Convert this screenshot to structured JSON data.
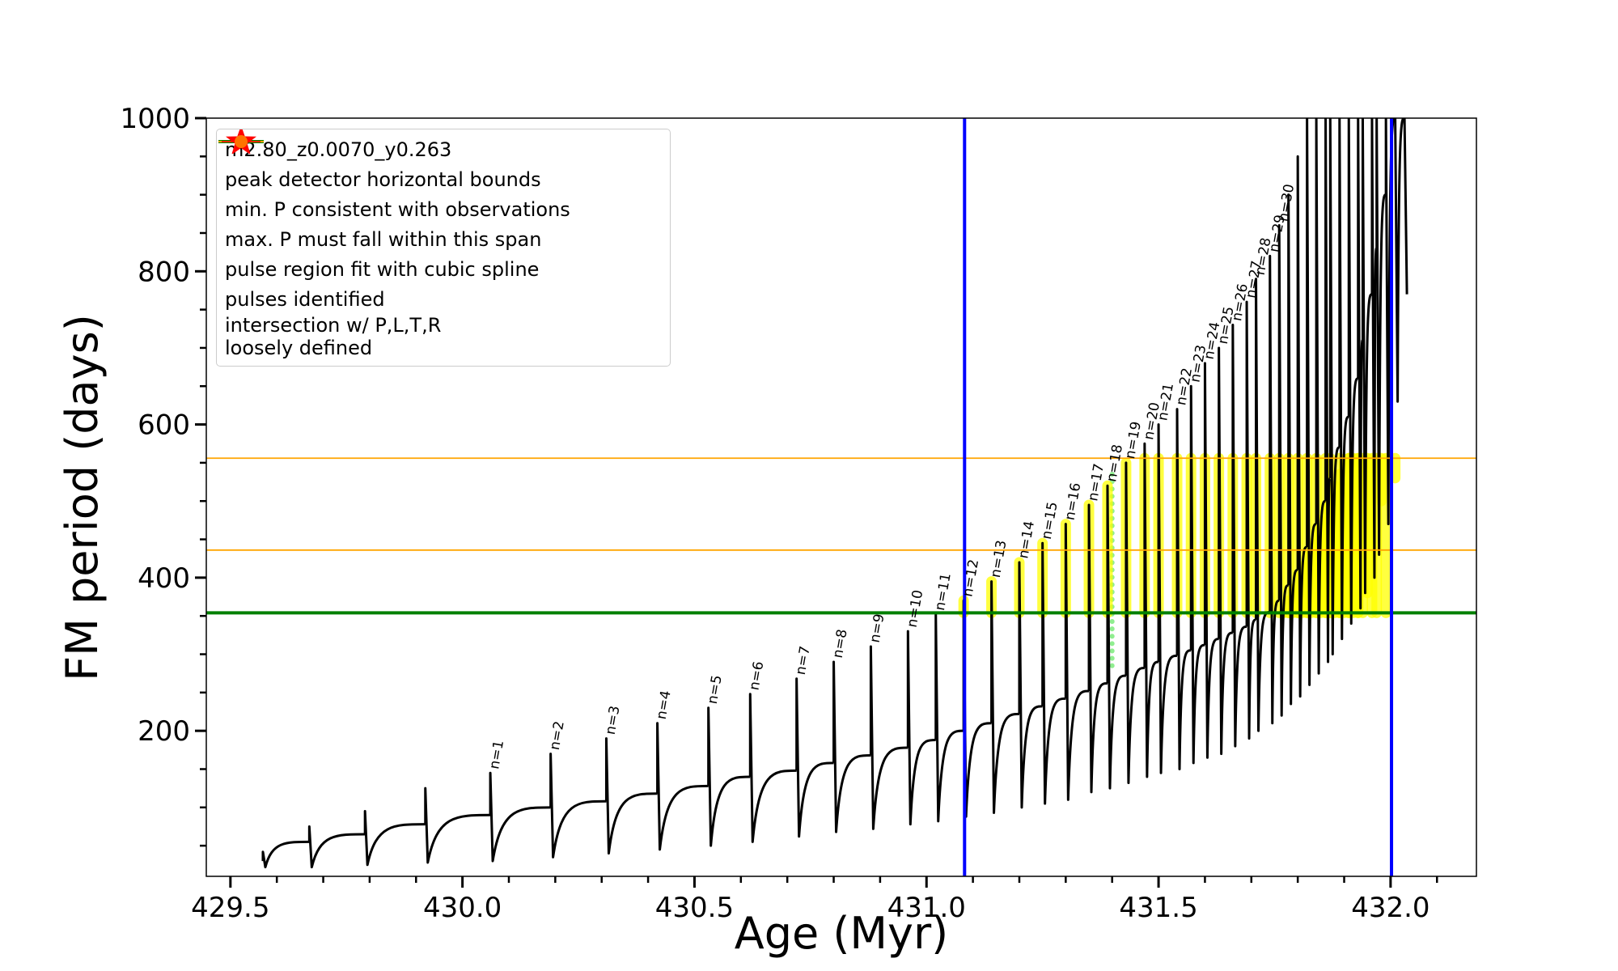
{
  "chart_data": {
    "type": "line",
    "xlabel": "Age (Myr)",
    "ylabel": "FM period (days)",
    "xlim": [
      429.448,
      432.185
    ],
    "ylim": [
      10,
      1000
    ],
    "xticks": [
      429.5,
      {
        "value": 430,
        "label": "430.0"
      },
      430.5,
      {
        "value": 431,
        "label": "431.0"
      },
      431.5,
      {
        "value": 432,
        "label": "432.0"
      }
    ],
    "yticks": [
      200,
      400,
      600,
      800,
      1000
    ],
    "xminorticks": [
      429.6,
      429.7,
      429.8,
      429.9,
      430.1,
      430.2,
      430.3,
      430.4,
      430.6,
      430.7,
      430.8,
      430.9,
      431.1,
      431.2,
      431.3,
      431.4,
      431.6,
      431.7,
      431.8,
      431.9,
      432.1
    ],
    "yminorticks": [
      50,
      100,
      150,
      250,
      300,
      350,
      450,
      500,
      550,
      650,
      700,
      750,
      850,
      900,
      950
    ],
    "series": [
      {
        "name": "m2.80_z0.0070_y0.263",
        "color": "#000000",
        "kind": "pulses",
        "x": [
          429.57,
          429.67,
          429.79,
          429.92,
          430.06,
          430.19,
          430.31,
          430.42,
          430.53,
          430.62,
          430.72,
          430.8,
          430.88,
          430.96,
          431.02,
          431.08,
          431.14,
          431.2,
          431.25,
          431.3,
          431.35,
          431.39,
          431.43,
          431.47,
          431.5,
          431.54,
          431.57,
          431.6,
          431.63,
          431.66,
          431.69,
          431.71,
          431.74,
          431.76,
          431.78,
          431.8,
          431.82,
          431.84,
          431.86,
          431.87,
          431.89,
          431.91,
          431.93,
          431.94,
          431.96,
          431.97,
          431.99,
          432.01,
          432.03
        ],
        "base": [
          30,
          55,
          65,
          78,
          90,
          100,
          108,
          118,
          128,
          140,
          148,
          158,
          168,
          178,
          188,
          200,
          210,
          222,
          232,
          242,
          252,
          262,
          272,
          282,
          290,
          298,
          305,
          312,
          320,
          328,
          336,
          345,
          355,
          370,
          390,
          410,
          440,
          470,
          500,
          530,
          570,
          610,
          660,
          710,
          770,
          830,
          900,
          1000,
          1000
        ],
        "peak": [
          42,
          75,
          95,
          125,
          145,
          170,
          190,
          210,
          230,
          248,
          268,
          290,
          310,
          330,
          352,
          370,
          395,
          420,
          445,
          470,
          495,
          520,
          550,
          575,
          600,
          620,
          650,
          680,
          700,
          730,
          760,
          790,
          820,
          860,
          900,
          950,
          1000,
          1000,
          1000,
          1000,
          1000,
          1000,
          1000,
          1000,
          1000,
          1000,
          1000,
          1000,
          1000
        ],
        "min": [
          22,
          22,
          25,
          28,
          30,
          35,
          40,
          45,
          50,
          55,
          62,
          68,
          72,
          78,
          82,
          88,
          93,
          100,
          105,
          110,
          120,
          125,
          132,
          140,
          145,
          150,
          158,
          165,
          170,
          180,
          190,
          200,
          210,
          220,
          235,
          245,
          260,
          275,
          290,
          300,
          320,
          340,
          360,
          380,
          400,
          430,
          470,
          630,
          770
        ]
      },
      {
        "name": "peak detector horizontal bounds",
        "color": "#0000ff",
        "kind": "vline",
        "values": [
          431.082,
          432.002
        ]
      },
      {
        "name": "min. P consistent with observations",
        "color": "#008000",
        "kind": "hline",
        "values": [
          354
        ]
      },
      {
        "name": "max. P must fall within this span",
        "color": "#ffa500",
        "kind": "hline",
        "values": [
          436,
          556
        ]
      },
      {
        "name": "pulse region fit with cubic spline",
        "color": "#90ee90",
        "kind": "vsegments",
        "x": [
          431.4
        ],
        "low": [
          285
        ],
        "high": [
          540
        ]
      },
      {
        "name": "pulses identified",
        "color": "#ff0000",
        "kind": "star",
        "x": [],
        "values": []
      },
      {
        "name": "intersection w/ P,L,T,R\nloosely defined",
        "color": "#ffff00",
        "kind": "vsegments",
        "x": [
          431.08,
          431.14,
          431.2,
          431.25,
          431.3,
          431.35,
          431.39,
          431.43,
          431.47,
          431.5,
          431.54,
          431.57,
          431.6,
          431.63,
          431.66,
          431.69,
          431.71,
          431.74,
          431.76,
          431.78,
          431.8,
          431.82,
          431.84,
          431.86,
          431.87,
          431.89,
          431.91,
          431.93,
          431.94,
          431.96,
          431.97,
          431.99,
          431.77,
          431.78,
          431.79,
          431.8,
          431.81,
          431.82,
          431.83,
          431.84,
          431.85,
          431.86,
          431.87,
          431.88,
          431.89,
          431.9,
          431.91,
          431.92,
          431.93,
          431.95,
          431.98,
          432.01
        ],
        "low": [
          354,
          354,
          354,
          354,
          354,
          354,
          354,
          354,
          354,
          354,
          354,
          354,
          354,
          354,
          354,
          354,
          354,
          354,
          354,
          354,
          354,
          354,
          354,
          354,
          354,
          354,
          354,
          354,
          354,
          354,
          354,
          354,
          354,
          354,
          354,
          354,
          354,
          354,
          354,
          354,
          354,
          354,
          354,
          354,
          354,
          354,
          354,
          354,
          354,
          380,
          500,
          530
        ],
        "high": [
          370,
          395,
          420,
          445,
          470,
          495,
          520,
          550,
          556,
          556,
          556,
          556,
          556,
          556,
          556,
          556,
          556,
          556,
          556,
          556,
          556,
          556,
          556,
          556,
          556,
          556,
          556,
          556,
          556,
          556,
          556,
          556,
          354,
          370,
          385,
          400,
          415,
          430,
          445,
          460,
          475,
          490,
          505,
          520,
          535,
          550,
          556,
          556,
          556,
          556,
          556,
          556
        ]
      }
    ],
    "annotations": [
      "n=1",
      "n=2",
      "n=3",
      "n=4",
      "n=5",
      "n=6",
      "n=7",
      "n=8",
      "n=9",
      "n=10",
      "n=11",
      "n=12",
      "n=13",
      "n=14",
      "n=15",
      "n=16",
      "n=17",
      "n=18",
      "n=19",
      "n=20",
      "n=21",
      "n=22",
      "n=23",
      "n=24",
      "n=25",
      "n=26",
      "n=27",
      "n=28",
      "n=29",
      "n=30"
    ]
  }
}
